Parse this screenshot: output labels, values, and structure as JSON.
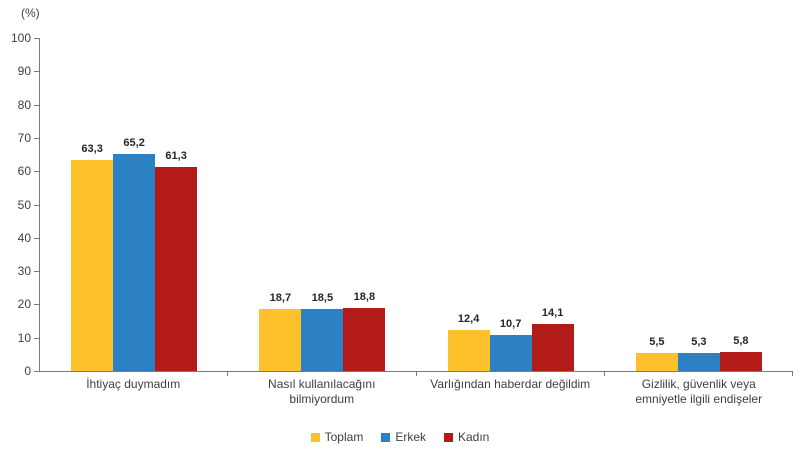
{
  "chart_data": {
    "type": "bar",
    "title": "",
    "unit_label": "(%)",
    "categories": [
      "İhtiyaç duymadım",
      "Nasıl kullanılacağını bilmiyordum",
      "Varlığından haberdar değildim",
      "Gizlilik, güvenlik veya emniyetle ilgili endişeler"
    ],
    "series": [
      {
        "name": "Toplam",
        "color": "#FDC12B",
        "values": [
          63.3,
          18.7,
          12.4,
          5.5
        ],
        "labels": [
          "63,3",
          "18,7",
          "12,4",
          "5,5"
        ]
      },
      {
        "name": "Erkek",
        "color": "#2C80C4",
        "values": [
          65.2,
          18.5,
          10.7,
          5.3
        ],
        "labels": [
          "65,2",
          "18,5",
          "10,7",
          "5,3"
        ]
      },
      {
        "name": "Kadın",
        "color": "#B21B17",
        "values": [
          61.3,
          18.8,
          14.1,
          5.8
        ],
        "labels": [
          "61,3",
          "18,8",
          "14,1",
          "5,8"
        ]
      }
    ],
    "ylim": [
      0,
      100
    ],
    "ytick_step": 10,
    "grid": false,
    "legend_position": "bottom",
    "decimal_separator": ","
  }
}
